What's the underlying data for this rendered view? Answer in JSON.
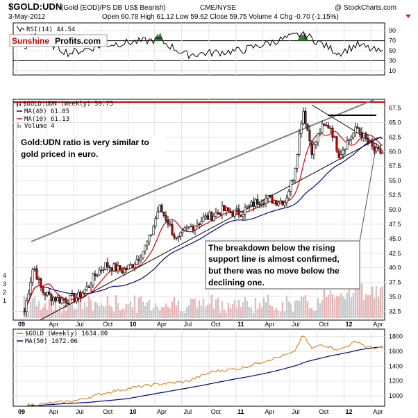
{
  "header": {
    "title": "$GOLD:UDN",
    "subtitle": "(Gold (EOD)/PS DB US$ Bearish)",
    "exchange": "CME/NYSE",
    "watermark": "@ StockCharts.com",
    "date": "3-May-2012",
    "quote": "Open 60.78  High 61.12  Low 59.62  Close 59.75  Volume 4  Chg -0.70 (-1.15%)"
  },
  "rsi_panel": {
    "label": "RSI(14) 44.54",
    "logo_red": "Sunshine",
    "logo_black": "Profits.com",
    "ticks": [
      "90",
      "70",
      "50",
      "30",
      "10"
    ]
  },
  "price_panel": {
    "legend_main": "$GOLD:UDN (Weekly) 59.75",
    "legend_ma40": "MA(40) 61.85",
    "legend_ma10": "MA(10) 61.13",
    "legend_vol": "Volume 4",
    "annotation_left": [
      "Gold:UDN ratio is very similar to",
      "gold priced in euro."
    ],
    "annotation_box": [
      "The breakdown below the rising",
      "support line is almost confirmed,",
      "but there was no move below the",
      "declining one."
    ],
    "ticks": [
      "67.5",
      "65.0",
      "62.5",
      "60.0",
      "57.5",
      "55.0",
      "52.5",
      "50.0",
      "47.5",
      "45.0",
      "42.5",
      "40.0",
      "37.5",
      "35.0",
      "32.5"
    ],
    "volume_ticks": [
      "4",
      "3",
      "2",
      "1"
    ]
  },
  "gold_panel": {
    "legend_gold": "$GOLD (Weekly) 1634.80",
    "legend_ma50": "MA(50) 1672.06",
    "ticks": [
      "1800",
      "1600",
      "1400",
      "1200",
      "1000"
    ]
  },
  "x_labels": [
    "09",
    "Apr",
    "Jul",
    "Oct",
    "10",
    "Apr",
    "Jul",
    "Oct",
    "11",
    "Apr",
    "Jul",
    "Oct",
    "12",
    "Apr"
  ],
  "colors": {
    "ma10": "#dd0000",
    "ma40": "#00008b",
    "gold_line": "#e07000",
    "ma50": "#00008b",
    "resistance": "#cc0000",
    "channel": "#808080",
    "rsi_fill": "#3a7a3a"
  },
  "chart_data": {
    "type": "line",
    "title": "$GOLD:UDN",
    "series": [
      {
        "name": "$GOLD:UDN (Weekly)",
        "x": [
          "2009-01",
          "2009-02",
          "2009-03",
          "2009-04",
          "2009-05",
          "2009-06",
          "2009-07",
          "2009-08",
          "2009-09",
          "2009-10",
          "2009-11",
          "2009-12",
          "2010-01",
          "2010-02",
          "2010-03",
          "2010-04",
          "2010-05",
          "2010-06",
          "2010-07",
          "2010-08",
          "2010-09",
          "2010-10",
          "2010-11",
          "2010-12",
          "2011-01",
          "2011-02",
          "2011-03",
          "2011-04",
          "2011-05",
          "2011-06",
          "2011-07",
          "2011-08",
          "2011-09",
          "2011-10",
          "2011-11",
          "2011-12",
          "2012-01",
          "2012-02",
          "2012-03",
          "2012-04",
          "2012-05"
        ],
        "values": [
          32.5,
          40.5,
          36,
          35,
          34.5,
          34.5,
          35,
          36.5,
          39,
          40.5,
          40,
          39.5,
          40.5,
          42.5,
          45,
          50.5,
          48,
          44.5,
          46.5,
          47.5,
          48.5,
          49,
          50,
          49.5,
          49.5,
          50.5,
          51.5,
          52,
          51.5,
          51.5,
          56,
          67.5,
          60,
          64,
          64.5,
          59.5,
          62,
          64,
          62,
          60,
          59.75
        ]
      },
      {
        "name": "$GOLD (Weekly)",
        "x": [
          "2009-01",
          "2009-04",
          "2009-07",
          "2009-10",
          "2010-01",
          "2010-04",
          "2010-07",
          "2010-10",
          "2011-01",
          "2011-04",
          "2011-07",
          "2011-08",
          "2011-09",
          "2011-10",
          "2011-12",
          "2012-02",
          "2012-03",
          "2012-05"
        ],
        "values": [
          870,
          900,
          940,
          1040,
          1110,
          1160,
          1190,
          1330,
          1370,
          1480,
          1580,
          1820,
          1630,
          1700,
          1620,
          1740,
          1660,
          1634.8
        ]
      },
      {
        "name": "RSI(14)",
        "x": [
          "2009-01",
          "2009-02",
          "2009-06",
          "2009-10",
          "2010-04",
          "2010-07",
          "2011-01",
          "2011-08",
          "2011-12",
          "2012-02",
          "2012-05"
        ],
        "values": [
          48,
          80,
          45,
          62,
          72,
          42,
          50,
          84,
          45,
          62,
          44.54
        ]
      }
    ],
    "ylim": [
      31,
      69
    ],
    "grid": true
  }
}
